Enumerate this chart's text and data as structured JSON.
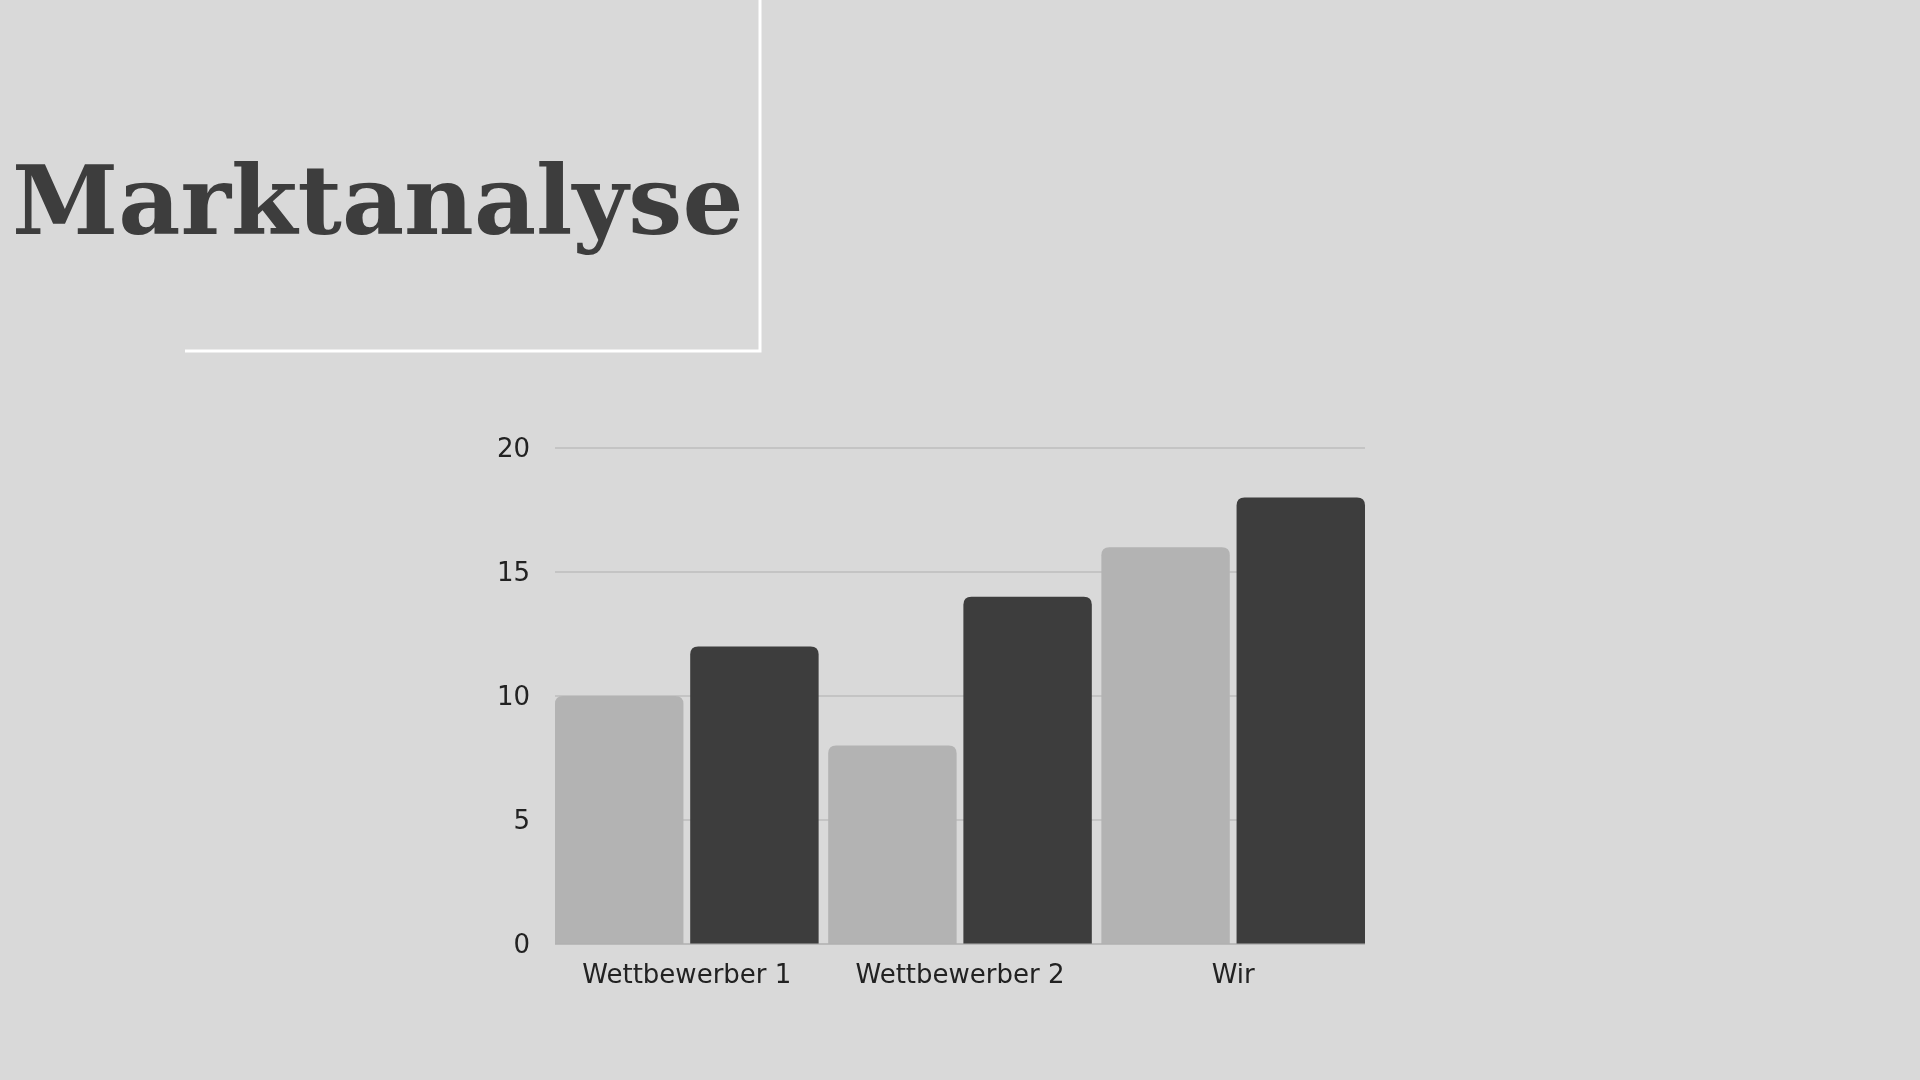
{
  "chart_data": {
    "type": "bar",
    "title": "Marktanalyse",
    "categories": [
      "Wettbewerber 1",
      "Wettbewerber 2",
      "Wir"
    ],
    "series": [
      {
        "color": "#b3b3b3",
        "values": [
          10,
          8,
          16
        ]
      },
      {
        "color": "#3d3d3d",
        "values": [
          12,
          14,
          18
        ]
      }
    ],
    "ylim": [
      0,
      20
    ],
    "yticks": [
      0,
      5,
      10,
      15,
      20
    ],
    "grid": "y"
  }
}
